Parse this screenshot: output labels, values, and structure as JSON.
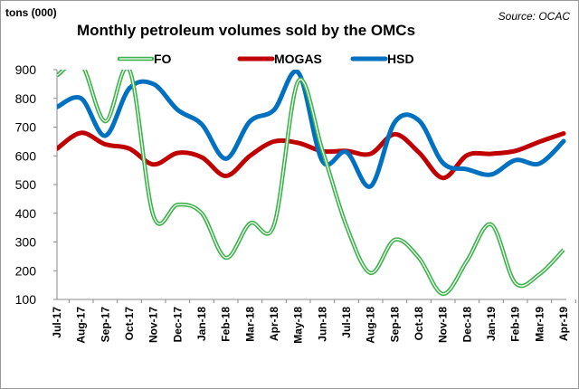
{
  "chart_data": {
    "type": "line",
    "title": "Monthly petroleum volumes sold by the OMCs",
    "ylabel": "tons (000)",
    "source": "Source: OCAC",
    "ylim": [
      100,
      900
    ],
    "yticks": [
      100,
      200,
      300,
      400,
      500,
      600,
      700,
      800,
      900
    ],
    "grid": false,
    "legend": "top",
    "categories": [
      "Jul-17",
      "Aug-17",
      "Sep-17",
      "Oct-17",
      "Nov-17",
      "Dec-17",
      "Jan-18",
      "Feb-18",
      "Mar-18",
      "Apr-18",
      "May-18",
      "Jun-18",
      "Jul-18",
      "Aug-18",
      "Sep-18",
      "Oct-18",
      "Nov-18",
      "Dec-18",
      "Jan-19",
      "Feb-19",
      "Mar-19",
      "Apr-19"
    ],
    "series": [
      {
        "name": "FO",
        "color": "#3cb44b",
        "values": [
          880,
          920,
          720,
          900,
          390,
          430,
          400,
          245,
          365,
          360,
          860,
          620,
          355,
          192,
          308,
          245,
          119,
          235,
          361,
          157,
          188,
          273
        ]
      },
      {
        "name": "MOGAS",
        "color": "#c00000",
        "values": [
          625,
          680,
          640,
          625,
          570,
          610,
          595,
          530,
          600,
          650,
          645,
          616,
          617,
          607,
          675,
          612,
          523,
          602,
          607,
          617,
          649,
          678
        ]
      },
      {
        "name": "HSD",
        "color": "#0070c0",
        "values": [
          770,
          800,
          670,
          835,
          850,
          760,
          710,
          590,
          720,
          760,
          890,
          582,
          613,
          494,
          717,
          723,
          575,
          553,
          535,
          585,
          573,
          651
        ]
      }
    ]
  }
}
